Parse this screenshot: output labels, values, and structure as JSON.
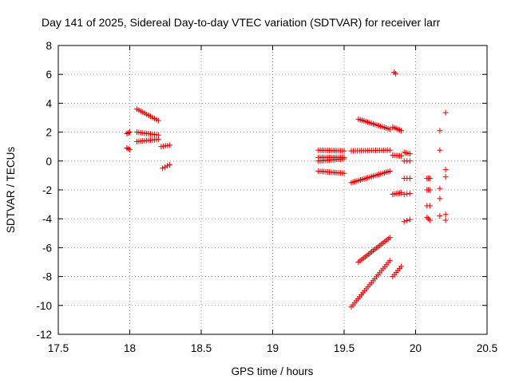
{
  "chart_data": {
    "type": "scatter",
    "title": "Day 141 of 2025, Sidereal Day-to-day VTEC variation (SDTVAR) for receiver larr",
    "xlabel": "GPS time / hours",
    "ylabel": "SDTVAR / TECUs",
    "xlim": [
      17.5,
      20.5
    ],
    "ylim": [
      -12,
      8
    ],
    "xticks": [
      "17.5",
      "18",
      "18.5",
      "19",
      "19.5",
      "20",
      "20.5"
    ],
    "yticks": [
      "-12",
      "-10",
      "-8",
      "-6",
      "-4",
      "-2",
      "0",
      "2",
      "4",
      "6",
      "8"
    ],
    "grid": true,
    "marker": "+",
    "color": "#e00000",
    "segments": [
      {
        "x0": 17.98,
        "x1": 18.0,
        "y0": 1.9,
        "y1": 2.0,
        "n": 3
      },
      {
        "x0": 17.98,
        "x1": 18.0,
        "y0": 0.9,
        "y1": 0.8,
        "n": 3
      },
      {
        "x0": 18.05,
        "x1": 18.2,
        "y0": 3.6,
        "y1": 2.8,
        "n": 12
      },
      {
        "x0": 18.05,
        "x1": 18.2,
        "y0": 2.0,
        "y1": 1.8,
        "n": 12
      },
      {
        "x0": 18.05,
        "x1": 18.2,
        "y0": 1.35,
        "y1": 1.5,
        "n": 12
      },
      {
        "x0": 18.22,
        "x1": 18.28,
        "y0": 1.0,
        "y1": 1.1,
        "n": 5
      },
      {
        "x0": 18.23,
        "x1": 18.28,
        "y0": -0.5,
        "y1": -0.25,
        "n": 4
      },
      {
        "x0": 19.32,
        "x1": 19.5,
        "y0": 0.75,
        "y1": 0.7,
        "n": 15
      },
      {
        "x0": 19.32,
        "x1": 19.5,
        "y0": 0.25,
        "y1": 0.25,
        "n": 15
      },
      {
        "x0": 19.32,
        "x1": 19.5,
        "y0": 0.0,
        "y1": 0.15,
        "n": 15
      },
      {
        "x0": 19.32,
        "x1": 19.5,
        "y0": -0.7,
        "y1": -0.85,
        "n": 15
      },
      {
        "x0": 19.55,
        "x1": 19.82,
        "y0": 0.7,
        "y1": 0.75,
        "n": 20
      },
      {
        "x0": 19.55,
        "x1": 19.82,
        "y0": -1.5,
        "y1": -0.7,
        "n": 22
      },
      {
        "x0": 19.6,
        "x1": 19.82,
        "y0": 2.9,
        "y1": 2.2,
        "n": 18
      },
      {
        "x0": 19.55,
        "x1": 19.82,
        "y0": -10.1,
        "y1": -6.9,
        "n": 24
      },
      {
        "x0": 19.6,
        "x1": 19.82,
        "y0": -7.0,
        "y1": -5.3,
        "n": 20
      },
      {
        "x0": 19.85,
        "x1": 19.86,
        "y0": 6.15,
        "y1": 6.05,
        "n": 2
      },
      {
        "x0": 19.84,
        "x1": 19.9,
        "y0": 2.35,
        "y1": 2.1,
        "n": 6
      },
      {
        "x0": 19.84,
        "x1": 19.9,
        "y0": 0.4,
        "y1": 0.35,
        "n": 6
      },
      {
        "x0": 19.84,
        "x1": 19.9,
        "y0": -2.3,
        "y1": -2.2,
        "n": 6
      },
      {
        "x0": 19.84,
        "x1": 19.9,
        "y0": -8.0,
        "y1": -7.3,
        "n": 6
      },
      {
        "x0": 19.92,
        "x1": 19.96,
        "y0": 0.6,
        "y1": 0.5,
        "n": 4
      },
      {
        "x0": 19.92,
        "x1": 19.96,
        "y0": 0.0,
        "y1": 0.0,
        "n": 3
      },
      {
        "x0": 19.92,
        "x1": 19.96,
        "y0": -1.2,
        "y1": -1.2,
        "n": 3
      },
      {
        "x0": 19.92,
        "x1": 19.96,
        "y0": -2.3,
        "y1": -2.25,
        "n": 3
      },
      {
        "x0": 19.92,
        "x1": 19.96,
        "y0": -4.2,
        "y1": -4.05,
        "n": 3
      },
      {
        "x0": 20.08,
        "x1": 20.1,
        "y0": -1.2,
        "y1": -1.2,
        "n": 3
      },
      {
        "x0": 20.08,
        "x1": 20.1,
        "y0": -2.0,
        "y1": -2.0,
        "n": 3
      },
      {
        "x0": 20.08,
        "x1": 20.1,
        "y0": -3.1,
        "y1": -3.1,
        "n": 2
      },
      {
        "x0": 20.08,
        "x1": 20.1,
        "y0": -3.9,
        "y1": -4.1,
        "n": 3
      },
      {
        "x0": 20.17,
        "x1": 20.17,
        "y0": 2.1,
        "y1": 2.1,
        "n": 1
      },
      {
        "x0": 20.17,
        "x1": 20.17,
        "y0": 0.75,
        "y1": 0.75,
        "n": 1
      },
      {
        "x0": 20.17,
        "x1": 20.17,
        "y0": -1.9,
        "y1": -1.9,
        "n": 1
      },
      {
        "x0": 20.17,
        "x1": 20.17,
        "y0": -2.6,
        "y1": -2.6,
        "n": 1
      },
      {
        "x0": 20.17,
        "x1": 20.17,
        "y0": -3.8,
        "y1": -3.8,
        "n": 1
      },
      {
        "x0": 20.21,
        "x1": 20.21,
        "y0": 3.35,
        "y1": 3.35,
        "n": 1
      },
      {
        "x0": 20.21,
        "x1": 20.21,
        "y0": -0.6,
        "y1": -0.6,
        "n": 1
      },
      {
        "x0": 20.21,
        "x1": 20.21,
        "y0": -1.1,
        "y1": -1.1,
        "n": 1
      },
      {
        "x0": 20.21,
        "x1": 20.21,
        "y0": -3.7,
        "y1": -3.7,
        "n": 1
      },
      {
        "x0": 20.21,
        "x1": 20.21,
        "y0": -4.1,
        "y1": -4.1,
        "n": 1
      }
    ]
  }
}
